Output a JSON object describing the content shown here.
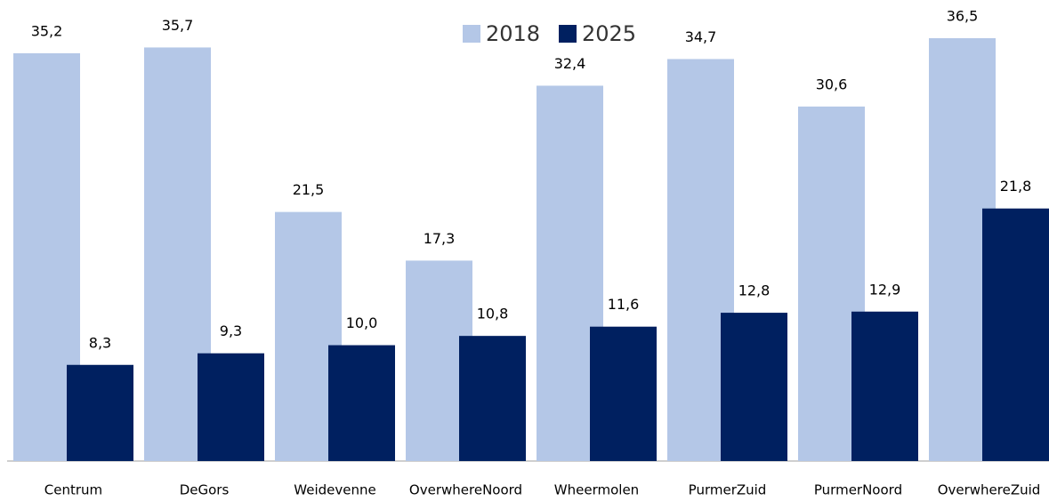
{
  "chart_data": {
    "type": "bar",
    "categories": [
      "Centrum",
      "DeGors",
      "Weidevenne",
      "OverwhereNoord",
      "Wheermolen",
      "PurmerZuid",
      "PurmerNoord",
      "OverwhereZuid"
    ],
    "series": [
      {
        "name": "2018",
        "color": "#b4c7e7",
        "values": [
          35.2,
          35.7,
          21.5,
          17.3,
          32.4,
          34.7,
          30.6,
          36.5
        ],
        "value_labels": [
          "35,2",
          "35,7",
          "21,5",
          "17,3",
          "32,4",
          "34,7",
          "30,6",
          "36,5"
        ]
      },
      {
        "name": "2025",
        "color": "#002060",
        "values": [
          8.3,
          9.3,
          10.0,
          10.8,
          11.6,
          12.8,
          12.9,
          21.8
        ],
        "value_labels": [
          "8,3",
          "9,3",
          "10,0",
          "10,8",
          "11,6",
          "12,8",
          "12,9",
          "21,8"
        ]
      }
    ],
    "legend": "top"
  }
}
